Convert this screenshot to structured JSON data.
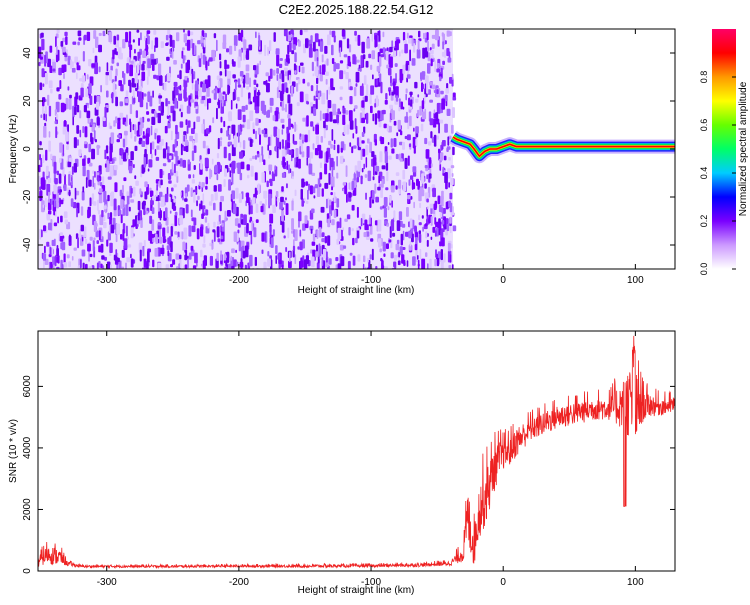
{
  "title": "C2E2.2025.188.22.54.G12",
  "chart_data": [
    {
      "type": "heatmap",
      "xlabel": "Height of straight line (km)",
      "ylabel": "Frequency (Hz)",
      "xlim": [
        -352,
        130
      ],
      "ylim": [
        -50,
        50
      ],
      "x_ticks": [
        -300,
        -200,
        -100,
        0,
        100
      ],
      "y_ticks": [
        -40,
        -20,
        0,
        20,
        40
      ],
      "x_tick_labels": [
        "-300",
        "-200",
        "-100",
        "0",
        "100"
      ],
      "y_tick_labels": [
        "-40",
        "-20",
        "0",
        "20",
        "40"
      ],
      "noise_region_x": [
        -352,
        -38
      ],
      "tone": {
        "x": [
          -38,
          -35,
          -30,
          -25,
          -22,
          -18,
          -14,
          -10,
          -5,
          0,
          5,
          10,
          20,
          50,
          100,
          130
        ],
        "freq_hz": [
          5,
          4,
          3,
          2,
          0,
          -3,
          -1,
          0,
          0,
          1,
          2,
          1,
          1,
          1,
          1,
          1
        ]
      },
      "colorbar": {
        "label": "Normalized spectral amplitude",
        "range": [
          0,
          1
        ],
        "ticks": [
          0.0,
          0.2,
          0.4,
          0.6,
          0.8
        ],
        "tick_labels": [
          "0.0",
          "0.2",
          "0.4",
          "0.6",
          "0.8"
        ],
        "colors": [
          "#ffffff",
          "#cc99ff",
          "#7a00ff",
          "#0000ff",
          "#00ccff",
          "#00ff66",
          "#66ff00",
          "#ffff00",
          "#ff9900",
          "#ff0000",
          "#ff0066"
        ]
      }
    },
    {
      "type": "line",
      "xlabel": "Height of straight line (km)",
      "ylabel": "SNR (10 * v/v)",
      "xlim": [
        -352,
        130
      ],
      "ylim": [
        0,
        7800
      ],
      "x_ticks": [
        -300,
        -200,
        -100,
        0,
        100
      ],
      "y_ticks": [
        0,
        2000,
        4000,
        6000
      ],
      "x_tick_labels": [
        "-300",
        "-200",
        "-100",
        "0",
        "100"
      ],
      "y_tick_labels": [
        "0",
        "2000",
        "4000",
        "6000"
      ],
      "series": [
        {
          "color": "#ee2222",
          "x": [
            -352,
            -345,
            -340,
            -335,
            -330,
            -320,
            -300,
            -250,
            -200,
            -150,
            -100,
            -60,
            -40,
            -30,
            -27,
            -25,
            -22,
            -20,
            -18,
            -15,
            -12,
            -10,
            -8,
            -5,
            -2,
            0,
            5,
            10,
            20,
            30,
            40,
            50,
            60,
            70,
            80,
            90,
            95,
            100,
            105,
            110,
            120,
            130
          ],
          "values": [
            300,
            550,
            500,
            450,
            250,
            150,
            150,
            150,
            160,
            160,
            170,
            200,
            250,
            600,
            1800,
            1400,
            800,
            1500,
            2000,
            2300,
            2600,
            2900,
            3200,
            3500,
            3700,
            3800,
            3900,
            4200,
            4600,
            4800,
            5000,
            5100,
            5200,
            5300,
            5300,
            5400,
            5500,
            5300,
            5400,
            5400,
            5350,
            5400
          ],
          "noise_amp": [
            200,
            300,
            300,
            250,
            80,
            40,
            40,
            40,
            40,
            50,
            50,
            60,
            80,
            300,
            900,
            900,
            700,
            800,
            900,
            1000,
            1000,
            900,
            800,
            700,
            600,
            500,
            500,
            500,
            400,
            400,
            400,
            400,
            400,
            400,
            400,
            800,
            1200,
            1400,
            600,
            400,
            300,
            300
          ]
        }
      ]
    }
  ]
}
